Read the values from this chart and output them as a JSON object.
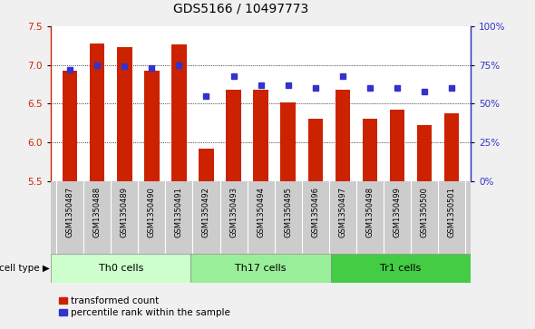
{
  "title": "GDS5166 / 10497773",
  "samples": [
    "GSM1350487",
    "GSM1350488",
    "GSM1350489",
    "GSM1350490",
    "GSM1350491",
    "GSM1350492",
    "GSM1350493",
    "GSM1350494",
    "GSM1350495",
    "GSM1350496",
    "GSM1350497",
    "GSM1350498",
    "GSM1350499",
    "GSM1350500",
    "GSM1350501"
  ],
  "bar_values": [
    6.93,
    7.28,
    7.23,
    6.93,
    7.27,
    5.92,
    6.68,
    6.68,
    6.52,
    6.3,
    6.68,
    6.3,
    6.42,
    6.22,
    6.38
  ],
  "dot_percentiles": [
    72,
    75,
    74,
    73,
    75,
    55,
    68,
    62,
    62,
    60,
    68,
    60,
    60,
    58,
    60
  ],
  "ylim_left": [
    5.5,
    7.5
  ],
  "ylim_right": [
    0,
    100
  ],
  "yticks_left": [
    5.5,
    6.0,
    6.5,
    7.0,
    7.5
  ],
  "yticks_right": [
    0,
    25,
    50,
    75,
    100
  ],
  "ytick_labels_right": [
    "0%",
    "25%",
    "50%",
    "75%",
    "100%"
  ],
  "bar_color": "#cc2200",
  "dot_color": "#3333cc",
  "bar_bottom": 5.5,
  "gridlines": [
    6.0,
    6.5,
    7.0
  ],
  "cell_groups": [
    {
      "label": "Th0 cells",
      "start": 0,
      "end": 5,
      "color": "#ccffcc"
    },
    {
      "label": "Th17 cells",
      "start": 5,
      "end": 10,
      "color": "#99ee99"
    },
    {
      "label": "Tr1 cells",
      "start": 10,
      "end": 15,
      "color": "#44cc44"
    }
  ],
  "legend_bar_label": "transformed count",
  "legend_dot_label": "percentile rank within the sample",
  "cell_type_label": "cell type",
  "fig_bg_color": "#f0f0f0",
  "plot_bg_color": "#ffffff",
  "xtick_area_color": "#cccccc",
  "title_fontsize": 10,
  "tick_fontsize": 7.5,
  "bar_width": 0.55
}
